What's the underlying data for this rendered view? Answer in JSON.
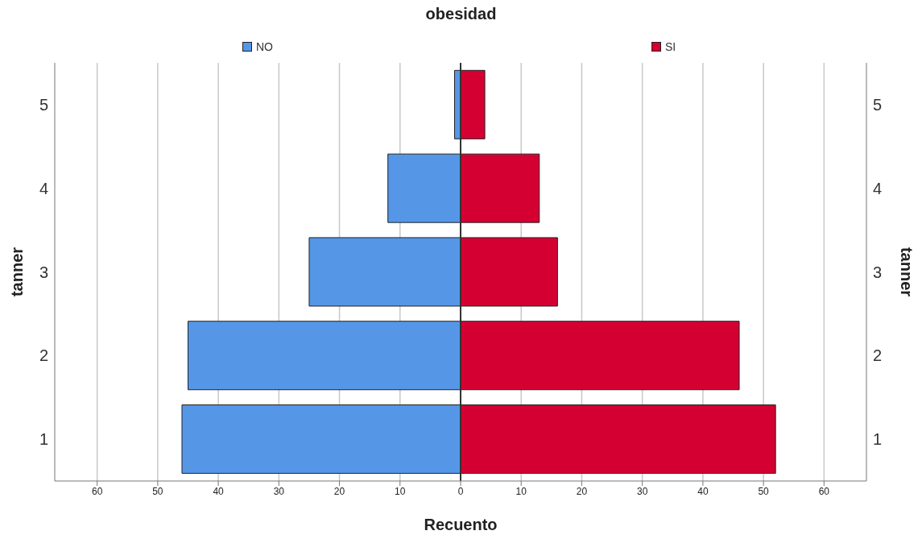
{
  "chart_data": {
    "type": "bar",
    "orientation": "horizontal",
    "stacked": true,
    "title": "obesidad",
    "xlabel": "Recuento",
    "ylabel": "tanner",
    "y2label": "tanner",
    "categories": [
      "5",
      "4",
      "3",
      "2",
      "1"
    ],
    "series": [
      {
        "name": "NO",
        "color": "#5596e6",
        "values": [
          -1,
          -12,
          -25,
          -45,
          -46
        ]
      },
      {
        "name": "SI",
        "color": "#d50032",
        "values": [
          4,
          13,
          16,
          46,
          52
        ]
      }
    ],
    "xlim": [
      -67,
      67
    ],
    "xticks": [
      {
        "value": -60,
        "label": "60"
      },
      {
        "value": -50,
        "label": "50"
      },
      {
        "value": -40,
        "label": "40"
      },
      {
        "value": -30,
        "label": "30"
      },
      {
        "value": -20,
        "label": "20"
      },
      {
        "value": -10,
        "label": "10"
      },
      0,
      10,
      20,
      30,
      40,
      50,
      60
    ],
    "grid": "x",
    "legend": "top",
    "ref_lines": [
      {
        "axis": "x",
        "value": 0,
        "color": "#333333"
      }
    ]
  }
}
